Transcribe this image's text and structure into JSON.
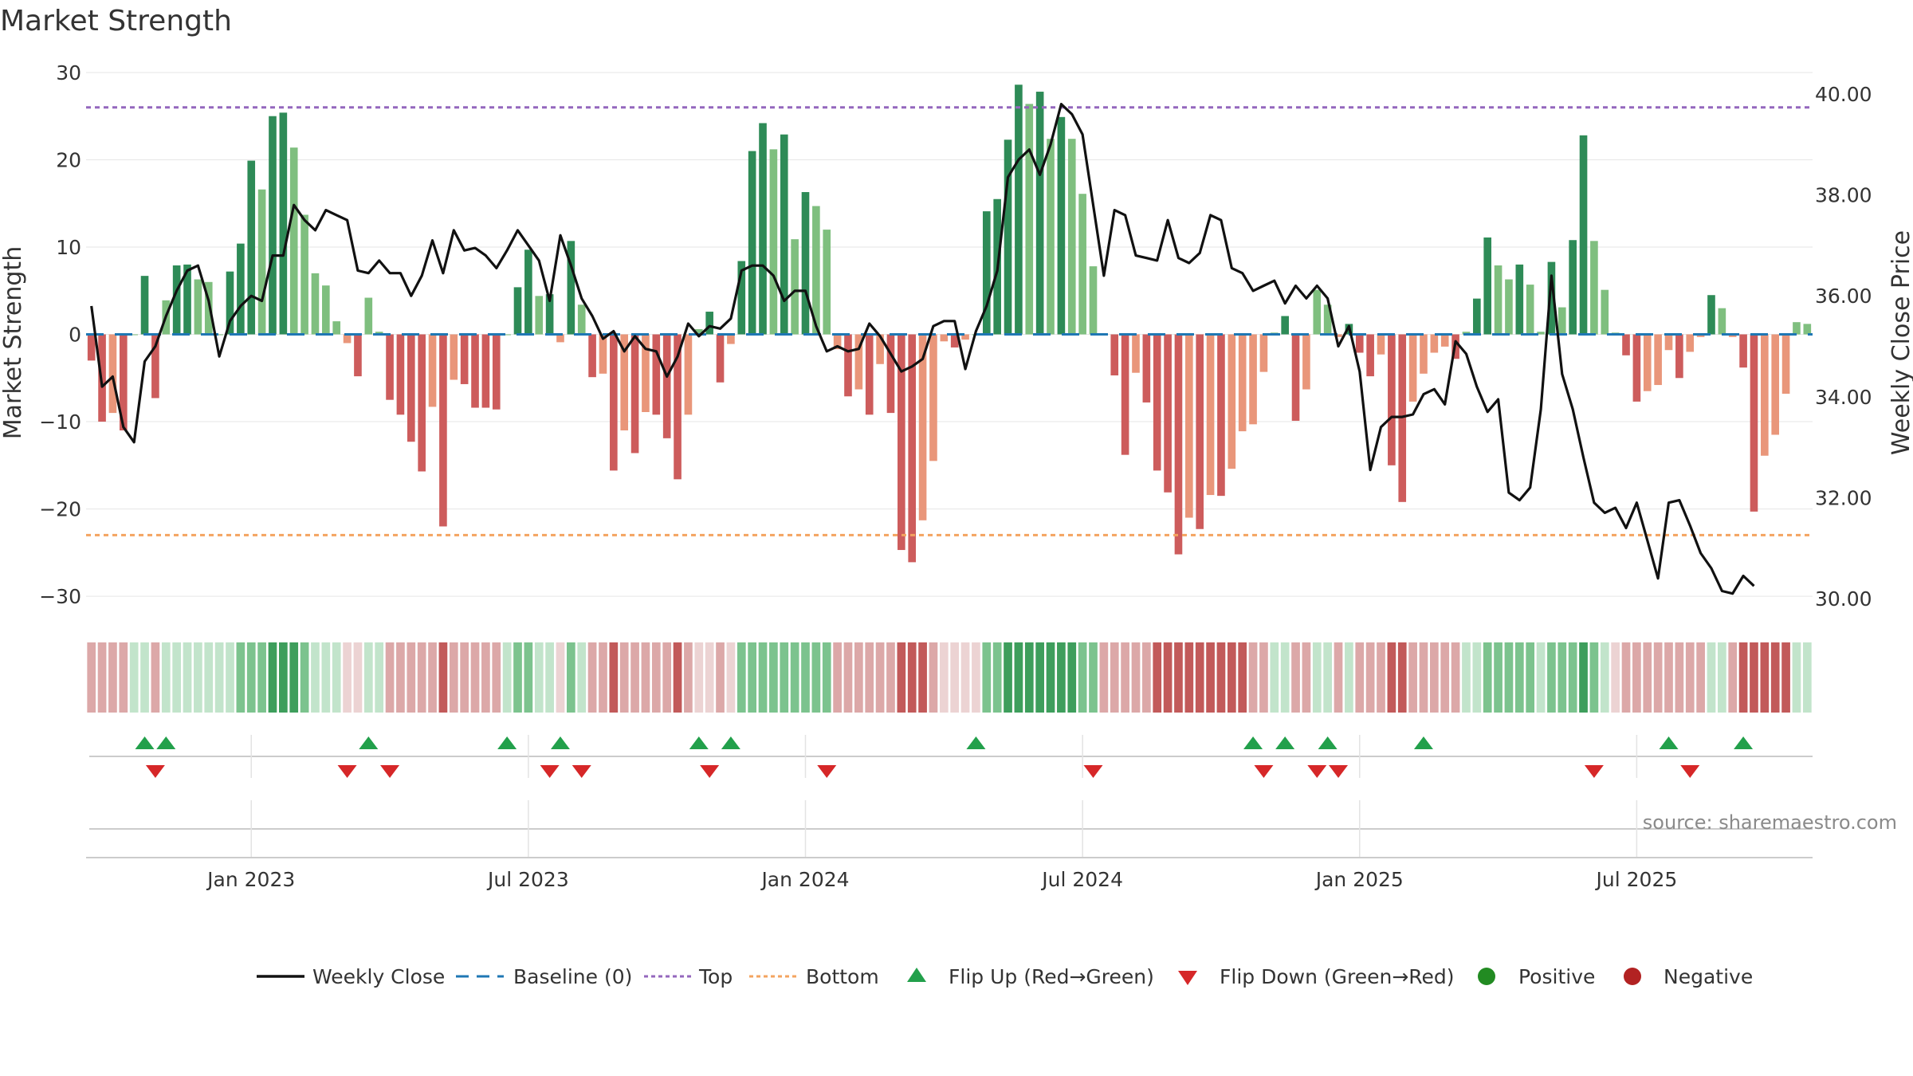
{
  "chart_data": {
    "type": "bar",
    "title": "Market Strength",
    "ylabel": "Market Strength",
    "y2label": "Weekly Close Price",
    "ylim": [
      -32,
      31
    ],
    "y2lim": [
      29.7,
      40.6
    ],
    "yticks": [
      "30",
      "20",
      "10",
      "0",
      "−10",
      "−20",
      "−30"
    ],
    "ytick_values": [
      30,
      20,
      10,
      0,
      -10,
      -20,
      -30
    ],
    "y2ticks": [
      "40.00",
      "38.00",
      "36.00",
      "34.00",
      "32.00",
      "30.00"
    ],
    "y2tick_values": [
      40,
      38,
      36,
      34,
      32,
      30
    ],
    "xticks": [
      "Jan 2023",
      "Jul 2023",
      "Jan 2024",
      "Jul 2024",
      "Jan 2025",
      "Jul 2025"
    ],
    "xtick_week_index": [
      15,
      41,
      67,
      93,
      119,
      145
    ],
    "top_level": 26,
    "bottom_level": -23,
    "strength": [
      -3,
      -10,
      -9,
      -11,
      0,
      6.7,
      -7.3,
      3.9,
      7.9,
      8,
      6.3,
      6,
      0,
      7.2,
      10.4,
      19.9,
      16.6,
      25,
      25.4,
      21.4,
      13.7,
      7,
      5.6,
      1.5,
      -1,
      -4.8,
      4.2,
      0.3,
      -7.5,
      -9.2,
      -12.3,
      -15.7,
      -8.3,
      -22,
      -5.2,
      -5.7,
      -8.4,
      -8.4,
      -8.6,
      0,
      5.4,
      9.7,
      4.4,
      4.6,
      -0.9,
      10.7,
      3.4,
      -4.9,
      -4.5,
      -15.6,
      -11,
      -13.6,
      -8.9,
      -9.2,
      -11.9,
      -16.6,
      -9.2,
      0.6,
      2.6,
      -5.5,
      -1.1,
      8.4,
      21,
      24.2,
      21.2,
      22.9,
      10.9,
      16.3,
      14.7,
      12,
      -1.7,
      -7.1,
      -6.3,
      -9.2,
      -3.4,
      -9,
      -24.7,
      -26.1,
      -21.3,
      -14.5,
      -0.8,
      -1.5,
      -0.6,
      0,
      14.1,
      15.5,
      22.3,
      28.6,
      26.4,
      27.8,
      22.4,
      24.9,
      22.4,
      16.1,
      7.8,
      0,
      -4.7,
      -13.8,
      -4.4,
      -7.8,
      -15.6,
      -18.1,
      -25.2,
      -21,
      -22.3,
      -18.4,
      -18.5,
      -15.4,
      -11.1,
      -10.3,
      -4.3,
      0.2,
      2.1,
      -9.9,
      -6.3,
      5.1,
      3.4,
      -0.3,
      1.2,
      -2.1,
      -4.8,
      -2.3,
      -15,
      -19.2,
      -7.7,
      -4.5,
      -2.1,
      -1.4,
      -2.8,
      0.3,
      4.1,
      11.1,
      7.9,
      6.3,
      8,
      5.7,
      0.3,
      8.3,
      3.1,
      10.8,
      22.8,
      10.7,
      5.1,
      0.2,
      -2.4,
      -7.7,
      -6.5,
      -5.8,
      -1.8,
      -5,
      -2,
      -0.3,
      4.5,
      3,
      -0.3,
      -3.8,
      -20.3,
      -13.9,
      -11.5,
      -6.8,
      1.4,
      1.2
    ],
    "weekly_close": [
      35.8,
      34.2,
      34.4,
      33.4,
      33.1,
      34.7,
      35.0,
      35.6,
      36.1,
      36.5,
      36.6,
      35.9,
      34.8,
      35.5,
      35.8,
      36.0,
      35.9,
      36.8,
      36.8,
      37.8,
      37.5,
      37.3,
      37.7,
      37.6,
      37.5,
      36.5,
      36.45,
      36.7,
      36.45,
      36.45,
      36.0,
      36.4,
      37.1,
      36.45,
      37.3,
      36.9,
      36.95,
      36.8,
      36.55,
      36.9,
      37.3,
      37.0,
      36.7,
      35.9,
      37.2,
      36.6,
      35.95,
      35.6,
      35.15,
      35.3,
      34.9,
      35.2,
      34.95,
      34.9,
      34.4,
      34.8,
      35.45,
      35.2,
      35.4,
      35.35,
      35.55,
      36.5,
      36.6,
      36.6,
      36.4,
      35.9,
      36.1,
      36.1,
      35.4,
      34.9,
      35.0,
      34.9,
      34.95,
      35.45,
      35.2,
      34.85,
      34.5,
      34.6,
      34.75,
      35.4,
      35.5,
      35.5,
      34.55,
      35.3,
      35.8,
      36.5,
      38.35,
      38.7,
      38.9,
      38.4,
      39.0,
      39.8,
      39.6,
      39.2,
      37.8,
      36.4,
      37.7,
      37.6,
      36.8,
      36.75,
      36.7,
      37.5,
      36.75,
      36.65,
      36.85,
      37.6,
      37.5,
      36.55,
      36.45,
      36.1,
      36.2,
      36.3,
      35.85,
      36.2,
      35.95,
      36.2,
      35.95,
      35.0,
      35.4,
      34.5,
      32.55,
      33.4,
      33.6,
      33.6,
      33.65,
      34.05,
      34.15,
      33.85,
      35.1,
      34.85,
      34.2,
      33.7,
      33.95,
      32.1,
      31.95,
      32.2,
      33.75,
      36.4,
      34.45,
      33.75,
      32.8,
      31.9,
      31.7,
      31.8,
      31.4,
      31.9,
      31.15,
      30.4,
      31.9,
      31.95,
      31.45,
      30.9,
      30.6,
      30.15,
      30.1,
      30.45,
      30.25
    ],
    "heat_levels": [
      -2,
      -2,
      -2,
      -2,
      1,
      1,
      -2,
      1,
      1,
      1,
      1,
      1,
      1,
      1,
      2,
      2,
      2,
      3,
      3,
      3,
      2,
      1,
      1,
      1,
      -1,
      -1,
      1,
      1,
      -2,
      -2,
      -2,
      -2,
      -2,
      -3,
      -2,
      -2,
      -2,
      -2,
      -2,
      1,
      2,
      2,
      1,
      1,
      -1,
      2,
      1,
      -2,
      -2,
      -3,
      -2,
      -2,
      -2,
      -2,
      -2,
      -3,
      -2,
      -1,
      -1,
      -2,
      -1,
      2,
      2,
      2,
      2,
      2,
      2,
      2,
      2,
      2,
      -2,
      -2,
      -2,
      -2,
      -2,
      -2,
      -3,
      -3,
      -3,
      -2,
      -1,
      -1,
      -1,
      -1,
      2,
      2,
      3,
      3,
      3,
      3,
      3,
      3,
      3,
      2,
      2,
      -2,
      -2,
      -2,
      -2,
      -2,
      -3,
      -3,
      -3,
      -3,
      -3,
      -3,
      -3,
      -3,
      -3,
      -2,
      -2,
      1,
      1,
      -2,
      -2,
      1,
      1,
      -2,
      1,
      -2,
      -2,
      -2,
      -3,
      -3,
      -2,
      -2,
      -2,
      -2,
      -2,
      1,
      1,
      2,
      2,
      2,
      2,
      2,
      1,
      2,
      2,
      2,
      3,
      2,
      1,
      -1,
      -2,
      -2,
      -2,
      -2,
      -2,
      -2,
      -2,
      -2,
      1,
      1,
      -2,
      -3,
      -3,
      -3,
      -3,
      -3,
      1,
      1
    ],
    "flip_up_week_index": [
      5,
      7,
      26,
      39,
      44,
      57,
      60,
      83,
      109,
      112,
      116,
      125,
      148,
      155
    ],
    "flip_down_week_index": [
      6,
      24,
      28,
      43,
      46,
      58,
      69,
      94,
      110,
      115,
      117,
      141,
      150
    ],
    "legend": [
      "Weekly Close",
      "Baseline (0)",
      "Top",
      "Bottom",
      "Flip Up (Red→Green)",
      "Flip Down (Green→Red)",
      "Positive",
      "Negative"
    ],
    "source": "source: sharemaestro.com",
    "colors": {
      "pos_strong": "#2e8b57",
      "pos_light": "#7fbf7f",
      "neg_strong": "#cd5c5c",
      "neg_light": "#e9967a",
      "close_line": "#111111",
      "baseline": "#1f77b4",
      "top_line": "#9467bd",
      "bottom_line": "#f4a460",
      "flip_up": "#22a04b",
      "flip_down": "#d62728",
      "positive_dot": "#228b22",
      "negative_dot": "#b22222",
      "grid": "#e6e6e6"
    }
  }
}
